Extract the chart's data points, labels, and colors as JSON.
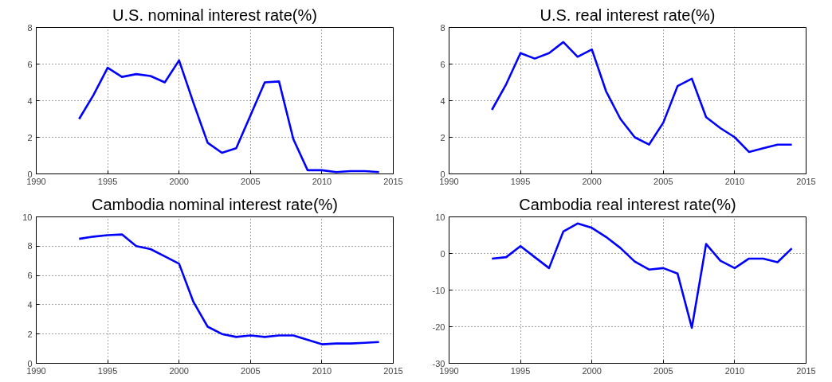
{
  "chart_data": [
    {
      "type": "line",
      "title": "U.S. nominal interest rate(%)",
      "x": [
        1993,
        1994,
        1995,
        1996,
        1997,
        1998,
        1999,
        2000,
        2001,
        2002,
        2003,
        2004,
        2005,
        2006,
        2007,
        2008,
        2009,
        2010,
        2011,
        2012,
        2013,
        2014
      ],
      "series": [
        {
          "color": "#0000ff",
          "values": [
            3.0,
            4.3,
            5.8,
            5.3,
            5.45,
            5.35,
            5.0,
            6.2,
            3.9,
            1.7,
            1.15,
            1.4,
            3.2,
            5.0,
            5.05,
            1.9,
            0.2,
            0.2,
            0.1,
            0.15,
            0.15,
            0.1
          ]
        }
      ],
      "xlim": [
        1990,
        2015
      ],
      "xticks": [
        1990,
        1995,
        2000,
        2005,
        2010,
        2015
      ],
      "ylim": [
        0,
        8
      ],
      "yticks": [
        0,
        2,
        4,
        6,
        8
      ],
      "grid": true,
      "line_style": "solid"
    },
    {
      "type": "line",
      "title": "U.S. real interest rate(%)",
      "x": [
        1993,
        1994,
        1995,
        1996,
        1997,
        1998,
        1999,
        2000,
        2001,
        2002,
        2003,
        2004,
        2005,
        2006,
        2007,
        2008,
        2009,
        2010,
        2011,
        2012,
        2013,
        2014
      ],
      "series": [
        {
          "color": "#0000ff",
          "values": [
            3.5,
            4.9,
            6.6,
            6.3,
            6.6,
            7.2,
            6.4,
            6.8,
            4.5,
            3.0,
            2.0,
            1.6,
            2.8,
            4.8,
            5.2,
            3.1,
            2.5,
            2.0,
            1.2,
            1.4,
            1.6,
            1.6
          ]
        }
      ],
      "xlim": [
        1990,
        2015
      ],
      "xticks": [
        1990,
        1995,
        2000,
        2005,
        2010,
        2015
      ],
      "ylim": [
        0,
        8
      ],
      "yticks": [
        0,
        2,
        4,
        6,
        8
      ],
      "grid": true,
      "line_style": "solid"
    },
    {
      "type": "line",
      "title": "Cambodia nominal interest rate(%)",
      "x": [
        1993,
        1994,
        1995,
        1996,
        1997,
        1998,
        1999,
        2000,
        2001,
        2002,
        2003,
        2004,
        2005,
        2006,
        2007,
        2008,
        2009,
        2010,
        2011,
        2012,
        2013,
        2014
      ],
      "series": [
        {
          "color": "#0000ff",
          "values": [
            8.5,
            8.65,
            8.75,
            8.8,
            8.0,
            7.8,
            7.3,
            6.8,
            4.2,
            2.5,
            2.0,
            1.8,
            1.9,
            1.8,
            1.9,
            1.9,
            1.6,
            1.3,
            1.35,
            1.35,
            1.4,
            1.45
          ]
        }
      ],
      "xlim": [
        1990,
        2015
      ],
      "xticks": [
        1990,
        1995,
        2000,
        2005,
        2010,
        2015
      ],
      "ylim": [
        0,
        10
      ],
      "yticks": [
        0,
        2,
        4,
        6,
        8,
        10
      ],
      "grid": true,
      "line_style": "solid"
    },
    {
      "type": "line",
      "title": "Cambodia real interest rate(%)",
      "x": [
        1993,
        1994,
        1995,
        1996,
        1997,
        1998,
        1999,
        2000,
        2001,
        2002,
        2003,
        2004,
        2005,
        2006,
        2007,
        2008,
        2009,
        2010,
        2011,
        2012,
        2013,
        2014
      ],
      "series": [
        {
          "color": "#0000ff",
          "values": [
            -1.4,
            -1,
            2,
            -1,
            -4,
            6,
            8.2,
            7,
            4.5,
            1.5,
            -2.2,
            -4.4,
            -4,
            -5.5,
            -20.3,
            2.6,
            -2,
            -4,
            -1.4,
            -1.4,
            -2.4,
            1.4
          ]
        }
      ],
      "xlim": [
        1990,
        2015
      ],
      "xticks": [
        1990,
        1995,
        2000,
        2005,
        2010,
        2015
      ],
      "ylim": [
        -30,
        10
      ],
      "yticks": [
        -30,
        -20,
        -10,
        0,
        10
      ],
      "grid": true,
      "line_style": "solid"
    }
  ]
}
